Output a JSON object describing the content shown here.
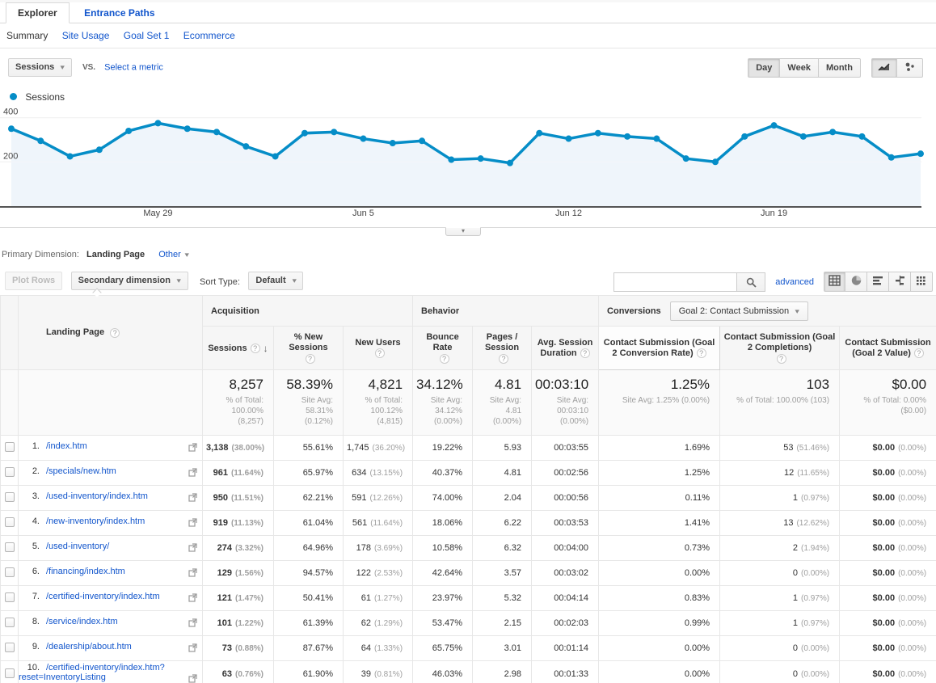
{
  "icons": {
    "help": "?",
    "sort_desc": "↓",
    "caret": "▾",
    "collapse": "▾"
  },
  "tabs": {
    "explorer": "Explorer",
    "entrance_paths": "Entrance Paths"
  },
  "subtabs": {
    "summary": "Summary",
    "site_usage": "Site Usage",
    "goal_set_1": "Goal Set 1",
    "ecommerce": "Ecommerce"
  },
  "metric_picker": {
    "selected": "Sessions",
    "vs_label": "VS.",
    "select_metric": "Select a metric"
  },
  "granularity": {
    "day": "Day",
    "week": "Week",
    "month": "Month",
    "selected": "Day"
  },
  "legend": {
    "label": "Sessions",
    "color": "#058dc7"
  },
  "chart_data": {
    "type": "line",
    "title": "Sessions over time (daily)",
    "x": [
      "May 24",
      "May 25",
      "May 26",
      "May 27",
      "May 28",
      "May 29",
      "May 30",
      "May 31",
      "Jun 1",
      "Jun 2",
      "Jun 3",
      "Jun 4",
      "Jun 5",
      "Jun 6",
      "Jun 7",
      "Jun 8",
      "Jun 9",
      "Jun 10",
      "Jun 11",
      "Jun 12",
      "Jun 13",
      "Jun 14",
      "Jun 15",
      "Jun 16",
      "Jun 17",
      "Jun 18",
      "Jun 19",
      "Jun 20",
      "Jun 21",
      "Jun 22",
      "Jun 23",
      "Jun 24"
    ],
    "series": [
      {
        "name": "Sessions",
        "color": "#058dc7",
        "values": [
          350,
          295,
          225,
          255,
          340,
          375,
          350,
          335,
          270,
          225,
          330,
          335,
          305,
          285,
          295,
          210,
          215,
          195,
          330,
          305,
          330,
          315,
          305,
          215,
          200,
          315,
          365,
          315,
          335,
          315,
          220,
          237
        ]
      }
    ],
    "x_axis_labels": [
      {
        "text": "May 29",
        "index": 5
      },
      {
        "text": "Jun 5",
        "index": 12
      },
      {
        "text": "Jun 12",
        "index": 19
      },
      {
        "text": "Jun 19",
        "index": 26
      }
    ],
    "y_ticks": [
      200,
      400
    ],
    "ylim": [
      0,
      424
    ],
    "grid": "horizontal",
    "area_fill": "#e9f2f9",
    "legend_position": "top-left"
  },
  "primary_dimension": {
    "label": "Primary Dimension:",
    "value": "Landing Page",
    "other": "Other"
  },
  "toolbar": {
    "plot_rows": "Plot Rows",
    "secondary_dimension": "Secondary dimension",
    "sort_type_label": "Sort Type:",
    "sort_type_value": "Default",
    "advanced": "advanced"
  },
  "table": {
    "dimension_header": "Landing Page",
    "groups": {
      "acquisition": "Acquisition",
      "behavior": "Behavior",
      "conversions": "Conversions",
      "goal_selector": "Goal 2: Contact Submission"
    },
    "columns": [
      "Sessions",
      "% New Sessions",
      "New Users",
      "Bounce Rate",
      "Pages / Session",
      "Avg. Session Duration",
      "Contact Submission (Goal 2 Conversion Rate)",
      "Contact Submission (Goal 2 Completions)",
      "Contact Submission (Goal 2 Value)"
    ],
    "summary": {
      "sessions": {
        "value": "8,257",
        "sub": "% of Total: 100.00% (8,257)"
      },
      "new_sessions": {
        "value": "58.39%",
        "sub": "Site Avg: 58.31% (0.12%)"
      },
      "new_users": {
        "value": "4,821",
        "sub": "% of Total: 100.12% (4,815)"
      },
      "bounce": {
        "value": "34.12%",
        "sub": "Site Avg: 34.12% (0.00%)"
      },
      "pages": {
        "value": "4.81",
        "sub": "Site Avg: 4.81 (0.00%)"
      },
      "duration": {
        "value": "00:03:10",
        "sub": "Site Avg: 00:03:10 (0.00%)"
      },
      "conv_rate": {
        "value": "1.25%",
        "sub": "Site Avg: 1.25% (0.00%)"
      },
      "completions": {
        "value": "103",
        "sub": "% of Total: 100.00% (103)"
      },
      "value": {
        "value": "$0.00",
        "sub": "% of Total: 0.00% ($0.00)"
      }
    },
    "rows": [
      {
        "num": "1.",
        "page": "/index.htm",
        "sessions": "3,138",
        "sessions_pct": "(38.00%)",
        "new_sessions": "55.61%",
        "new_users": "1,745",
        "new_users_pct": "(36.20%)",
        "bounce": "19.22%",
        "pages": "5.93",
        "duration": "00:03:55",
        "conv_rate": "1.69%",
        "completions": "53",
        "completions_pct": "(51.46%)",
        "value": "$0.00",
        "value_pct": "(0.00%)"
      },
      {
        "num": "2.",
        "page": "/specials/new.htm",
        "sessions": "961",
        "sessions_pct": "(11.64%)",
        "new_sessions": "65.97%",
        "new_users": "634",
        "new_users_pct": "(13.15%)",
        "bounce": "40.37%",
        "pages": "4.81",
        "duration": "00:02:56",
        "conv_rate": "1.25%",
        "completions": "12",
        "completions_pct": "(11.65%)",
        "value": "$0.00",
        "value_pct": "(0.00%)"
      },
      {
        "num": "3.",
        "page": "/used-inventory/index.htm",
        "sessions": "950",
        "sessions_pct": "(11.51%)",
        "new_sessions": "62.21%",
        "new_users": "591",
        "new_users_pct": "(12.26%)",
        "bounce": "74.00%",
        "pages": "2.04",
        "duration": "00:00:56",
        "conv_rate": "0.11%",
        "completions": "1",
        "completions_pct": "(0.97%)",
        "value": "$0.00",
        "value_pct": "(0.00%)"
      },
      {
        "num": "4.",
        "page": "/new-inventory/index.htm",
        "sessions": "919",
        "sessions_pct": "(11.13%)",
        "new_sessions": "61.04%",
        "new_users": "561",
        "new_users_pct": "(11.64%)",
        "bounce": "18.06%",
        "pages": "6.22",
        "duration": "00:03:53",
        "conv_rate": "1.41%",
        "completions": "13",
        "completions_pct": "(12.62%)",
        "value": "$0.00",
        "value_pct": "(0.00%)"
      },
      {
        "num": "5.",
        "page": "/used-inventory/",
        "sessions": "274",
        "sessions_pct": "(3.32%)",
        "new_sessions": "64.96%",
        "new_users": "178",
        "new_users_pct": "(3.69%)",
        "bounce": "10.58%",
        "pages": "6.32",
        "duration": "00:04:00",
        "conv_rate": "0.73%",
        "completions": "2",
        "completions_pct": "(1.94%)",
        "value": "$0.00",
        "value_pct": "(0.00%)"
      },
      {
        "num": "6.",
        "page": "/financing/index.htm",
        "sessions": "129",
        "sessions_pct": "(1.56%)",
        "new_sessions": "94.57%",
        "new_users": "122",
        "new_users_pct": "(2.53%)",
        "bounce": "42.64%",
        "pages": "3.57",
        "duration": "00:03:02",
        "conv_rate": "0.00%",
        "completions": "0",
        "completions_pct": "(0.00%)",
        "value": "$0.00",
        "value_pct": "(0.00%)"
      },
      {
        "num": "7.",
        "page": "/certified-inventory/index.htm",
        "sessions": "121",
        "sessions_pct": "(1.47%)",
        "new_sessions": "50.41%",
        "new_users": "61",
        "new_users_pct": "(1.27%)",
        "bounce": "23.97%",
        "pages": "5.32",
        "duration": "00:04:14",
        "conv_rate": "0.83%",
        "completions": "1",
        "completions_pct": "(0.97%)",
        "value": "$0.00",
        "value_pct": "(0.00%)"
      },
      {
        "num": "8.",
        "page": "/service/index.htm",
        "sessions": "101",
        "sessions_pct": "(1.22%)",
        "new_sessions": "61.39%",
        "new_users": "62",
        "new_users_pct": "(1.29%)",
        "bounce": "53.47%",
        "pages": "2.15",
        "duration": "00:02:03",
        "conv_rate": "0.99%",
        "completions": "1",
        "completions_pct": "(0.97%)",
        "value": "$0.00",
        "value_pct": "(0.00%)"
      },
      {
        "num": "9.",
        "page": "/dealership/about.htm",
        "sessions": "73",
        "sessions_pct": "(0.88%)",
        "new_sessions": "87.67%",
        "new_users": "64",
        "new_users_pct": "(1.33%)",
        "bounce": "65.75%",
        "pages": "3.01",
        "duration": "00:01:14",
        "conv_rate": "0.00%",
        "completions": "0",
        "completions_pct": "(0.00%)",
        "value": "$0.00",
        "value_pct": "(0.00%)"
      },
      {
        "num": "10.",
        "page": "/certified-inventory/index.htm?reset=InventoryListing",
        "sessions": "63",
        "sessions_pct": "(0.76%)",
        "new_sessions": "61.90%",
        "new_users": "39",
        "new_users_pct": "(0.81%)",
        "bounce": "46.03%",
        "pages": "2.98",
        "duration": "00:01:33",
        "conv_rate": "0.00%",
        "completions": "0",
        "completions_pct": "(0.00%)",
        "value": "$0.00",
        "value_pct": "(0.00%)"
      }
    ]
  }
}
